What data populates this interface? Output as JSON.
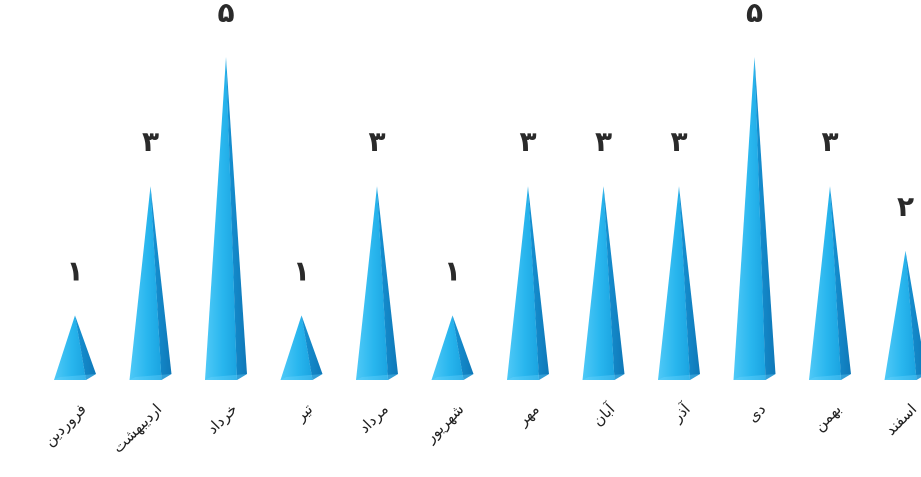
{
  "chart_data": {
    "type": "bar",
    "bar_style": "pyramid",
    "categories": [
      "فروردین",
      "اردیبهشت",
      "خرداد",
      "تیر",
      "مرداد",
      "شهریور",
      "مهر",
      "آبان",
      "آذر",
      "دی",
      "بهمن",
      "اسفند"
    ],
    "values": [
      1,
      3,
      5,
      1,
      3,
      1,
      3,
      3,
      3,
      5,
      3,
      2
    ],
    "value_labels": [
      "۱",
      "۳",
      "۵",
      "۱",
      "۳",
      "۱",
      "۳",
      "۳",
      "۳",
      "۵",
      "۳",
      "۲"
    ],
    "ylim": [
      0,
      5
    ],
    "grid": false,
    "legend": "none",
    "colors": {
      "face": "#29b6ee",
      "highlight": "#6fd6ff",
      "shade": "#1287c9",
      "label": "#2a2a2a"
    }
  }
}
